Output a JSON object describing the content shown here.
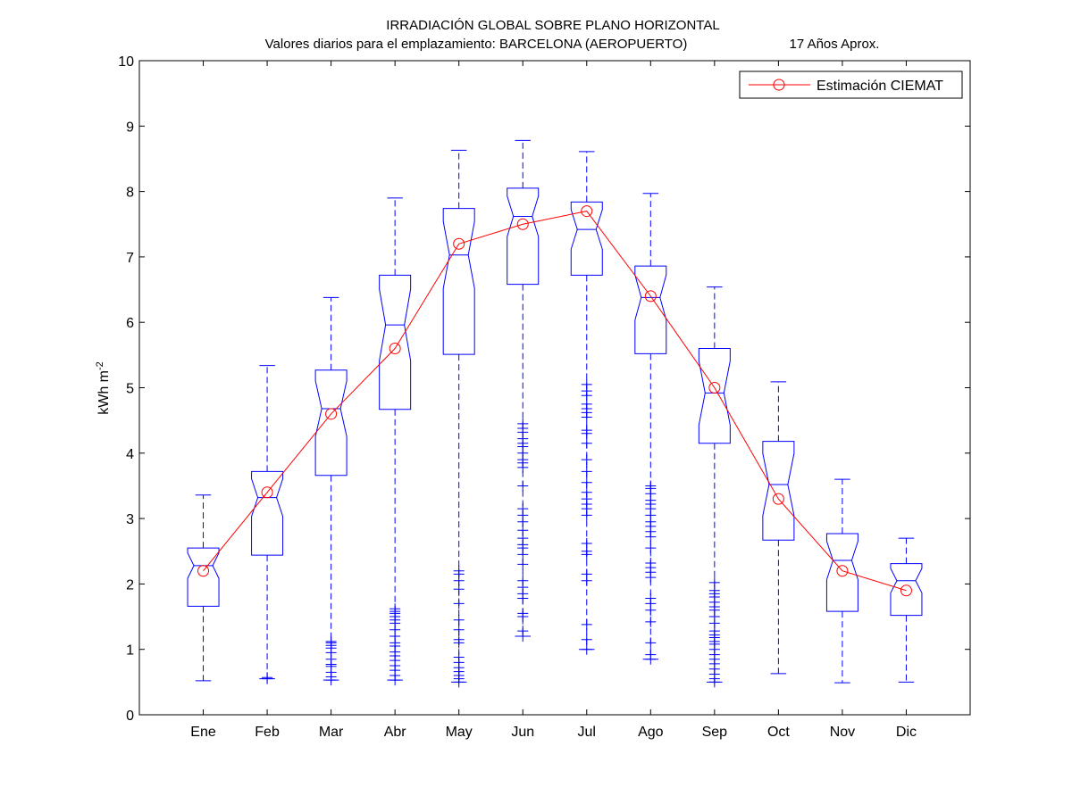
{
  "chart_data": {
    "type": "box",
    "title": "IRRADIACIÓN GLOBAL SOBRE PLANO HORIZONTAL",
    "subtitle": {
      "location": "Valores diarios para el emplazamiento:  BARCELONA (AEROPUERTO)",
      "period": "17 Años Aprox."
    },
    "ylabel": {
      "base": "kWh m",
      "superscript": "-2"
    },
    "xlabel": "",
    "ylim": [
      0,
      10
    ],
    "yticks": [
      0,
      1,
      2,
      3,
      4,
      5,
      6,
      7,
      8,
      9,
      10
    ],
    "grid": false,
    "legend_position": "top-right",
    "categories": [
      "Ene",
      "Feb",
      "Mar",
      "Abr",
      "May",
      "Jun",
      "Jul",
      "Ago",
      "Sep",
      "Oct",
      "Nov",
      "Dic"
    ],
    "boxes": [
      {
        "q1": 1.66,
        "median": 2.28,
        "q3": 2.55,
        "whisker_low": 0.52,
        "whisker_high": 3.36,
        "outliers": []
      },
      {
        "q1": 2.44,
        "median": 3.32,
        "q3": 3.72,
        "whisker_low": 0.55,
        "whisker_high": 5.34,
        "outliers": [
          0.55,
          0.57
        ]
      },
      {
        "q1": 3.66,
        "median": 4.68,
        "q3": 5.27,
        "whisker_low": 0.53,
        "whisker_high": 6.38,
        "outliers": [
          0.53,
          0.58,
          0.65,
          0.74,
          0.77,
          0.85,
          0.95,
          1.02,
          1.06,
          1.1,
          1.12
        ]
      },
      {
        "q1": 4.67,
        "median": 5.96,
        "q3": 6.72,
        "whisker_low": 0.53,
        "whisker_high": 7.9,
        "outliers": [
          0.53,
          0.6,
          0.68,
          0.75,
          0.83,
          0.9,
          0.96,
          1.05,
          1.1,
          1.2,
          1.3,
          1.4,
          1.45,
          1.5,
          1.55,
          1.58,
          1.62
        ]
      },
      {
        "q1": 5.51,
        "median": 7.03,
        "q3": 7.74,
        "whisker_low": 0.5,
        "whisker_high": 8.63,
        "outliers": [
          0.5,
          0.55,
          0.6,
          0.66,
          0.72,
          0.8,
          0.88,
          1.1,
          1.15,
          1.3,
          1.45,
          1.7,
          1.92,
          2.05,
          2.15,
          2.2
        ]
      },
      {
        "q1": 6.58,
        "median": 7.62,
        "q3": 8.05,
        "whisker_low": 1.2,
        "whisker_high": 8.78,
        "outliers": [
          1.2,
          1.28,
          1.5,
          1.55,
          1.78,
          1.85,
          1.95,
          2.05,
          2.3,
          2.45,
          2.55,
          2.6,
          2.7,
          2.82,
          2.95,
          3.05,
          3.15,
          3.5,
          3.78,
          3.85,
          3.9,
          4.0,
          4.1,
          4.15,
          4.22,
          4.32,
          4.38,
          4.45
        ]
      },
      {
        "q1": 6.72,
        "median": 7.42,
        "q3": 7.84,
        "whisker_low": 1.0,
        "whisker_high": 8.61,
        "outliers": [
          1.0,
          1.15,
          1.38,
          2.05,
          2.15,
          2.45,
          2.5,
          2.62,
          3.05,
          3.15,
          3.22,
          3.3,
          3.4,
          3.55,
          3.72,
          3.9,
          4.15,
          4.3,
          4.35,
          4.55,
          4.62,
          4.68,
          4.75,
          4.88,
          4.95,
          5.05
        ]
      },
      {
        "q1": 5.52,
        "median": 6.38,
        "q3": 6.86,
        "whisker_low": 0.85,
        "whisker_high": 7.97,
        "outliers": [
          0.85,
          0.92,
          1.1,
          1.42,
          1.6,
          1.7,
          1.78,
          2.1,
          2.18,
          2.25,
          2.32,
          2.55,
          2.72,
          2.8,
          2.88,
          2.95,
          3.05,
          3.15,
          3.22,
          3.28,
          3.38,
          3.46,
          3.5
        ]
      },
      {
        "q1": 4.15,
        "median": 4.92,
        "q3": 5.6,
        "whisker_low": 0.5,
        "whisker_high": 6.54,
        "outliers": [
          0.5,
          0.55,
          0.62,
          0.7,
          0.78,
          0.85,
          0.92,
          1.0,
          1.08,
          1.12,
          1.18,
          1.22,
          1.28,
          1.4,
          1.5,
          1.6,
          1.65,
          1.72,
          1.8,
          1.85,
          1.9,
          2.02
        ]
      },
      {
        "q1": 2.67,
        "median": 3.52,
        "q3": 4.18,
        "whisker_low": 0.63,
        "whisker_high": 5.09,
        "outliers": []
      },
      {
        "q1": 1.58,
        "median": 2.36,
        "q3": 2.77,
        "whisker_low": 0.49,
        "whisker_high": 3.6,
        "outliers": []
      },
      {
        "q1": 1.52,
        "median": 2.05,
        "q3": 2.31,
        "whisker_low": 0.5,
        "whisker_high": 2.7,
        "outliers": []
      }
    ],
    "series": [
      {
        "name": "Estimación CIEMAT",
        "type": "line",
        "marker": "circle",
        "values": [
          2.2,
          3.4,
          4.6,
          5.6,
          7.2,
          7.5,
          7.7,
          6.4,
          5.0,
          3.3,
          2.2,
          1.9
        ]
      }
    ],
    "colors": {
      "box": "#0000ff",
      "line": "#ff0000",
      "axes": "#000000",
      "background": "#ffffff"
    }
  }
}
